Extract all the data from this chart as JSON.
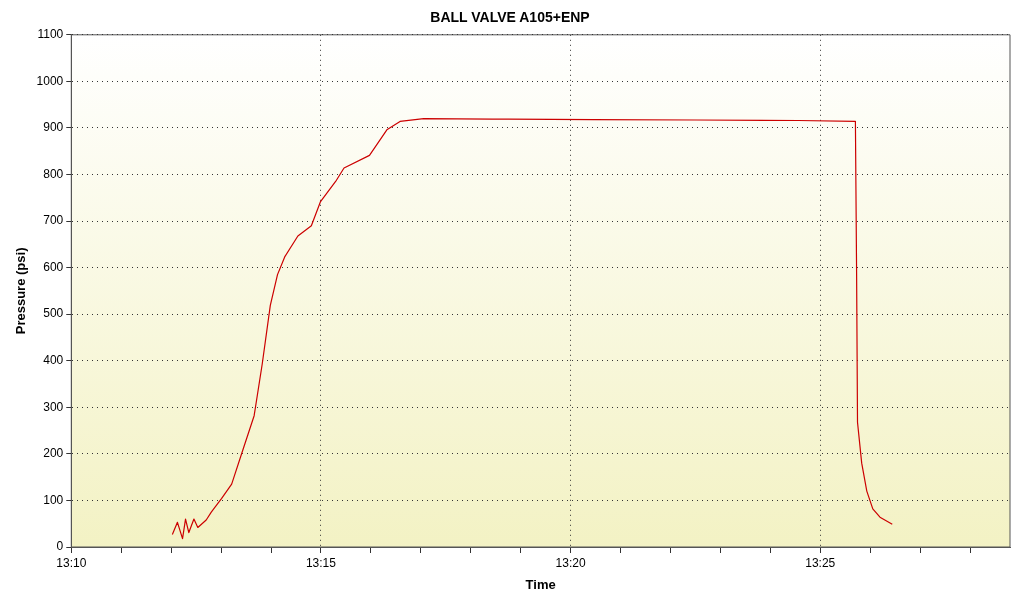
{
  "chart_data": {
    "type": "line",
    "title": "BALL VALVE A105+ENP",
    "xlabel": "Time",
    "ylabel": "Pressure (psi)",
    "xlim": [
      13.16667,
      13.48
    ],
    "ylim": [
      0,
      1100
    ],
    "xticks": [
      {
        "value": 13.16667,
        "label": "13:10"
      },
      {
        "value": 13.18333,
        "label": null
      },
      {
        "value": 13.2,
        "label": null
      },
      {
        "value": 13.21667,
        "label": null
      },
      {
        "value": 13.23333,
        "label": null
      },
      {
        "value": 13.25,
        "label": "13:15"
      },
      {
        "value": 13.26667,
        "label": null
      },
      {
        "value": 13.28333,
        "label": null
      },
      {
        "value": 13.3,
        "label": null
      },
      {
        "value": 13.31667,
        "label": null
      },
      {
        "value": 13.33333,
        "label": "13:20"
      },
      {
        "value": 13.35,
        "label": null
      },
      {
        "value": 13.36667,
        "label": null
      },
      {
        "value": 13.38333,
        "label": null
      },
      {
        "value": 13.4,
        "label": null
      },
      {
        "value": 13.41667,
        "label": "13:25"
      },
      {
        "value": 13.43333,
        "label": null
      },
      {
        "value": 13.45,
        "label": null
      },
      {
        "value": 13.46667,
        "label": null
      }
    ],
    "yticks": [
      0,
      100,
      200,
      300,
      400,
      500,
      600,
      700,
      800,
      900,
      1000,
      1100
    ],
    "grid": true,
    "legend": false,
    "marker": "none",
    "line_style": "solid",
    "series": [
      {
        "color": "#cc0000",
        "x": [
          13.2004,
          13.2021,
          13.2038,
          13.2048,
          13.2059,
          13.2076,
          13.2089,
          13.2117,
          13.2134,
          13.2168,
          13.2202,
          13.2236,
          13.2277,
          13.2304,
          13.2331,
          13.2355,
          13.2379,
          13.2423,
          13.2468,
          13.2498,
          13.2549,
          13.2577,
          13.2662,
          13.272,
          13.2764,
          13.2843,
          13.3071,
          13.3412,
          13.3753,
          13.4093,
          13.4284,
          13.4288,
          13.4291,
          13.4305,
          13.4322,
          13.4342,
          13.4366,
          13.4407
        ],
        "values": [
          27,
          53,
          18,
          60,
          31,
          60,
          42,
          58,
          75,
          104,
          135,
          202,
          282,
          393,
          519,
          585,
          623,
          668,
          690,
          741,
          785,
          814,
          841,
          896,
          914,
          920,
          919,
          918,
          917,
          916,
          914,
          585,
          268,
          180,
          120,
          82,
          64,
          49
        ]
      }
    ]
  }
}
